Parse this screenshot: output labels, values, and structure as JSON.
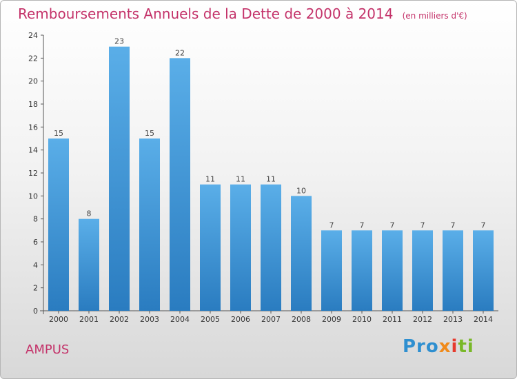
{
  "chart_data": {
    "type": "bar",
    "title": "Remboursements Annuels de la Dette de 2000 à 2014",
    "unit_note": "(en milliers d'€)",
    "categories": [
      "2000",
      "2001",
      "2002",
      "2003",
      "2004",
      "2005",
      "2006",
      "2007",
      "2008",
      "2009",
      "2010",
      "2011",
      "2012",
      "2013",
      "2014"
    ],
    "values": [
      15,
      8,
      23,
      15,
      22,
      11,
      11,
      11,
      10,
      7,
      7,
      7,
      7,
      7,
      7
    ],
    "data_labels": [
      "15",
      "8",
      "23",
      "15",
      "22",
      "11",
      "11",
      "11",
      "10",
      "7",
      "7",
      "7",
      "7",
      "7",
      "7"
    ],
    "ylim": [
      0,
      24
    ],
    "yticks": [
      0,
      2,
      4,
      6,
      8,
      10,
      12,
      14,
      16,
      18,
      20,
      22,
      24
    ],
    "xlabel": "",
    "ylabel": "",
    "grid": false,
    "bar_color_top": "#5aaee8",
    "bar_color_bottom": "#2a7cc0"
  },
  "footer": {
    "town": "AMPUS",
    "logo_parts": [
      "Pro",
      "x",
      "i",
      "ti"
    ]
  }
}
